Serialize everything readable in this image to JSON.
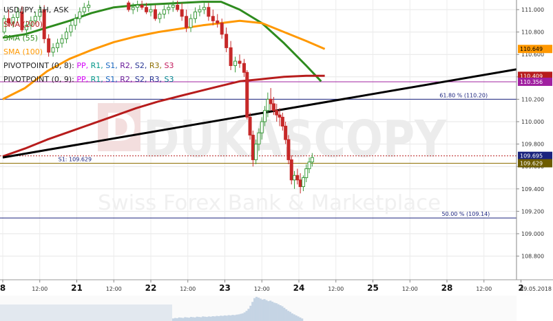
{
  "chart_data": {
    "type": "candlestick",
    "title": "USD/JPY, 1H, ASK",
    "watermark": {
      "brand": "DUKASCOPY",
      "tagline": "Swiss Forex Bank & Marketplace"
    },
    "legend": [
      {
        "text": "SMA (200)",
        "color": "#b71c1c"
      },
      {
        "text": "SMA (55)",
        "color": "#2e8b1e"
      },
      {
        "text": "SMA (100)",
        "color": "#ff9800"
      },
      {
        "text": "PIVOTPOINT (0, 8):",
        "color": "#222222",
        "parts": [
          {
            "t": "PP,",
            "c": "#d500f9"
          },
          {
            "t": "R1,",
            "c": "#009688"
          },
          {
            "t": "S1,",
            "c": "#1565c0"
          },
          {
            "t": "R2,",
            "c": "#6a1b9a"
          },
          {
            "t": "S2,",
            "c": "#283593"
          },
          {
            "t": "R3,",
            "c": "#8d6e00"
          },
          {
            "t": "S3",
            "c": "#c2185b"
          }
        ]
      },
      {
        "text": "PIVOTPOINT (0, 9):",
        "color": "#222222",
        "parts": [
          {
            "t": "PP,",
            "c": "#d500f9"
          },
          {
            "t": "R1,",
            "c": "#009688"
          },
          {
            "t": "S1,",
            "c": "#1565c0"
          },
          {
            "t": "R2,",
            "c": "#6a1b9a"
          },
          {
            "t": "S2,",
            "c": "#283593"
          },
          {
            "t": "R3,",
            "c": "#283593"
          },
          {
            "t": "S3",
            "c": "#00838f"
          }
        ]
      }
    ],
    "y_axis": {
      "ticks": [
        "111.000",
        "110.800",
        "110.600",
        "110.400",
        "110.200",
        "110.000",
        "109.800",
        "109.600",
        "109.400",
        "109.200",
        "109.000",
        "108.800"
      ],
      "range": [
        108.65,
        111.06
      ]
    },
    "x_axis": {
      "ticks": [
        {
          "label": "8",
          "bold": true,
          "x": 0
        },
        {
          "label": "12:00",
          "bold": false,
          "x": 0.5
        },
        {
          "label": "21",
          "bold": true,
          "x": 1
        },
        {
          "label": "12:00",
          "bold": false,
          "x": 1.5
        },
        {
          "label": "22",
          "bold": true,
          "x": 2
        },
        {
          "label": "12:00",
          "bold": false,
          "x": 2.5
        },
        {
          "label": "23",
          "bold": true,
          "x": 3
        },
        {
          "label": "12:00",
          "bold": false,
          "x": 3.5
        },
        {
          "label": "24",
          "bold": true,
          "x": 4
        },
        {
          "label": "12:00",
          "bold": false,
          "x": 4.5
        },
        {
          "label": "25",
          "bold": true,
          "x": 5
        },
        {
          "label": "12:00",
          "bold": false,
          "x": 5.5
        },
        {
          "label": "28",
          "bold": true,
          "x": 6
        },
        {
          "label": "12:00",
          "bold": false,
          "x": 6.5
        },
        {
          "label": "2",
          "bold": true,
          "x": 7
        }
      ],
      "end_label": "29.05.2018"
    },
    "price_tags": [
      {
        "label": "110.649",
        "value": 110.649,
        "bg": "#ff9800",
        "fg": "#000000"
      },
      {
        "label": "110.409",
        "value": 110.409,
        "bg": "#b71c1c",
        "fg": "#ffffff"
      },
      {
        "label": "110.356",
        "value": 110.356,
        "bg": "#a020a0",
        "fg": "#ffffff"
      },
      {
        "label": "109.695",
        "value": 109.695,
        "bg": "#1a237e",
        "fg": "#ffffff"
      },
      {
        "label": "109.629",
        "value": 109.629,
        "bg": "#6d5c00",
        "fg": "#ffffff"
      }
    ],
    "horizontal_lines": [
      {
        "value": 110.356,
        "color": "#a020a0",
        "label": "",
        "label_x": 0
      },
      {
        "value": 110.2,
        "color": "#1a237e",
        "label": "61.80 % (110.20)",
        "label_x": 5.9
      },
      {
        "value": 109.695,
        "color": "#b71c1c",
        "label": "",
        "label_x": 0,
        "dashed": true
      },
      {
        "value": 109.629,
        "color": "#8d6e00",
        "label": "S1: 109.629",
        "label_x": 0.75
      },
      {
        "value": 109.14,
        "color": "#1a237e",
        "label": "50.00 % (109.14)",
        "label_x": 5.93
      }
    ],
    "trendline": {
      "color": "#000000",
      "start": {
        "x": 0,
        "y": 109.68
      },
      "end": {
        "x": 7,
        "y": 110.474
      }
    },
    "series": [
      {
        "name": "SMA (55)",
        "color": "#2e8b1e",
        "points": [
          [
            0,
            110.75
          ],
          [
            0.3,
            110.78
          ],
          [
            0.6,
            110.84
          ],
          [
            0.9,
            110.9
          ],
          [
            1.2,
            110.97
          ],
          [
            1.5,
            111.02
          ],
          [
            1.8,
            111.04
          ],
          [
            2.1,
            111.05
          ],
          [
            2.4,
            111.06
          ],
          [
            2.7,
            111.07
          ],
          [
            2.95,
            111.07
          ],
          [
            3.2,
            111.0
          ],
          [
            3.5,
            110.88
          ],
          [
            3.8,
            110.7
          ],
          [
            4.1,
            110.5
          ],
          [
            4.3,
            110.36
          ]
        ]
      },
      {
        "name": "SMA (100)",
        "color": "#ff9800",
        "points": [
          [
            0,
            110.2
          ],
          [
            0.3,
            110.3
          ],
          [
            0.6,
            110.45
          ],
          [
            0.9,
            110.56
          ],
          [
            1.2,
            110.64
          ],
          [
            1.5,
            110.71
          ],
          [
            1.8,
            110.76
          ],
          [
            2.1,
            110.8
          ],
          [
            2.4,
            110.83
          ],
          [
            2.7,
            110.86
          ],
          [
            2.95,
            110.88
          ],
          [
            3.2,
            110.9
          ],
          [
            3.5,
            110.88
          ],
          [
            3.8,
            110.8
          ],
          [
            4.1,
            110.72
          ],
          [
            4.35,
            110.649
          ]
        ]
      },
      {
        "name": "SMA (200)",
        "color": "#b71c1c",
        "points": [
          [
            0,
            109.69
          ],
          [
            0.3,
            109.76
          ],
          [
            0.6,
            109.84
          ],
          [
            0.9,
            109.91
          ],
          [
            1.2,
            109.98
          ],
          [
            1.5,
            110.05
          ],
          [
            1.8,
            110.12
          ],
          [
            2.1,
            110.18
          ],
          [
            2.4,
            110.23
          ],
          [
            2.7,
            110.28
          ],
          [
            2.95,
            110.32
          ],
          [
            3.2,
            110.36
          ],
          [
            3.5,
            110.38
          ],
          [
            3.8,
            110.4
          ],
          [
            4.1,
            110.41
          ],
          [
            4.35,
            110.409
          ]
        ]
      }
    ],
    "candles": [
      [
        0.02,
        110.8,
        110.95,
        110.78,
        110.92
      ],
      [
        0.08,
        110.92,
        111.0,
        110.85,
        110.88
      ],
      [
        0.14,
        110.88,
        110.96,
        110.84,
        110.93
      ],
      [
        0.2,
        110.93,
        111.02,
        110.88,
        110.98
      ],
      [
        0.26,
        110.98,
        111.03,
        110.8,
        110.82
      ],
      [
        0.32,
        110.82,
        110.9,
        110.76,
        110.86
      ],
      [
        0.38,
        110.86,
        110.94,
        110.82,
        110.9
      ],
      [
        0.44,
        110.9,
        110.98,
        110.87,
        110.94
      ],
      [
        0.5,
        110.94,
        111.04,
        110.9,
        111.0
      ],
      [
        0.56,
        111.0,
        111.04,
        110.7,
        110.74
      ],
      [
        0.62,
        110.74,
        110.78,
        110.58,
        110.62
      ],
      [
        0.68,
        110.62,
        110.7,
        110.58,
        110.66
      ],
      [
        0.74,
        110.66,
        110.74,
        110.62,
        110.7
      ],
      [
        0.8,
        110.7,
        110.78,
        110.66,
        110.74
      ],
      [
        0.86,
        110.74,
        110.84,
        110.7,
        110.8
      ],
      [
        0.92,
        110.8,
        110.9,
        110.76,
        110.86
      ],
      [
        0.98,
        110.86,
        110.96,
        110.82,
        110.92
      ],
      [
        1.04,
        110.92,
        111.02,
        110.88,
        110.98
      ],
      [
        1.1,
        110.98,
        111.06,
        110.94,
        111.02
      ],
      [
        1.16,
        111.02,
        111.08,
        110.98,
        111.04
      ],
      [
        1.7,
        111.06,
        111.08,
        110.98,
        111.0
      ],
      [
        1.76,
        111.0,
        111.06,
        110.96,
        111.02
      ],
      [
        1.82,
        111.02,
        111.08,
        110.98,
        111.04
      ],
      [
        1.88,
        111.04,
        111.08,
        111.0,
        111.02
      ],
      [
        1.94,
        111.02,
        111.06,
        110.96,
        110.98
      ],
      [
        2.0,
        110.98,
        111.04,
        110.94,
        111.0
      ],
      [
        2.06,
        111.0,
        111.04,
        110.9,
        110.92
      ],
      [
        2.12,
        110.92,
        110.98,
        110.88,
        110.96
      ],
      [
        2.18,
        110.96,
        111.04,
        110.92,
        111.0
      ],
      [
        2.24,
        111.0,
        111.06,
        110.96,
        111.02
      ],
      [
        2.3,
        111.02,
        111.08,
        110.98,
        111.04
      ],
      [
        2.36,
        111.04,
        111.08,
        110.98,
        111.0
      ],
      [
        2.42,
        111.0,
        111.06,
        110.9,
        110.94
      ],
      [
        2.48,
        110.94,
        111.0,
        110.8,
        110.84
      ],
      [
        2.54,
        110.84,
        110.96,
        110.8,
        110.92
      ],
      [
        2.6,
        110.92,
        111.02,
        110.88,
        110.98
      ],
      [
        2.66,
        110.98,
        111.04,
        110.94,
        111.0
      ],
      [
        2.72,
        111.0,
        111.06,
        110.96,
        111.02
      ],
      [
        2.78,
        111.02,
        111.06,
        110.9,
        110.94
      ],
      [
        2.84,
        110.94,
        111.0,
        110.86,
        110.9
      ],
      [
        2.9,
        110.9,
        110.96,
        110.84,
        110.88
      ],
      [
        2.96,
        110.88,
        110.92,
        110.74,
        110.78
      ],
      [
        3.02,
        110.78,
        110.84,
        110.62,
        110.66
      ],
      [
        3.08,
        110.66,
        110.72,
        110.46,
        110.5
      ],
      [
        3.14,
        110.5,
        110.58,
        110.44,
        110.54
      ],
      [
        3.2,
        110.54,
        110.6,
        110.48,
        110.52
      ],
      [
        3.26,
        110.52,
        110.56,
        110.4,
        110.44
      ],
      [
        3.3,
        110.44,
        110.46,
        110.02,
        110.04
      ],
      [
        3.34,
        110.04,
        110.08,
        109.84,
        109.88
      ],
      [
        3.38,
        109.88,
        109.92,
        109.6,
        109.66
      ],
      [
        3.42,
        109.66,
        109.84,
        109.62,
        109.8
      ],
      [
        3.46,
        109.8,
        109.94,
        109.74,
        109.9
      ],
      [
        3.5,
        109.9,
        110.04,
        109.84,
        110.0
      ],
      [
        3.54,
        110.0,
        110.14,
        109.96,
        110.1
      ],
      [
        3.58,
        110.1,
        110.26,
        110.04,
        110.2
      ],
      [
        3.62,
        110.2,
        110.3,
        110.1,
        110.16
      ],
      [
        3.66,
        110.16,
        110.22,
        110.06,
        110.1
      ],
      [
        3.7,
        110.1,
        110.16,
        110.0,
        110.06
      ],
      [
        3.74,
        110.06,
        110.12,
        109.96,
        110.04
      ],
      [
        3.78,
        110.04,
        110.08,
        109.92,
        109.96
      ],
      [
        3.82,
        109.96,
        110.0,
        109.8,
        109.84
      ],
      [
        3.86,
        109.84,
        109.88,
        109.62,
        109.66
      ],
      [
        3.9,
        109.66,
        109.7,
        109.44,
        109.48
      ],
      [
        3.94,
        109.48,
        109.56,
        109.4,
        109.52
      ],
      [
        3.98,
        109.52,
        109.58,
        109.44,
        109.48
      ],
      [
        4.02,
        109.48,
        109.54,
        109.36,
        109.42
      ],
      [
        4.06,
        109.42,
        109.52,
        109.38,
        109.5
      ],
      [
        4.1,
        109.5,
        109.62,
        109.46,
        109.58
      ],
      [
        4.14,
        109.58,
        109.68,
        109.54,
        109.64
      ],
      [
        4.18,
        109.64,
        109.72,
        109.6,
        109.68
      ]
    ],
    "volume_bars": [
      0.1,
      0.12,
      0.11,
      0.14,
      0.13,
      0.12,
      0.15,
      0.14,
      0.13,
      0.16,
      0.15,
      0.14,
      0.17,
      0.16,
      0.15,
      0.18,
      0.17,
      0.16,
      0.18,
      0.17,
      0.19,
      0.18,
      0.2,
      0.19,
      0.21,
      0.2,
      0.22,
      0.21,
      0.23,
      0.22,
      0.24,
      0.23,
      0.25,
      0.26,
      0.28,
      0.3,
      0.34,
      0.4,
      0.48,
      0.6,
      0.75,
      0.9,
      0.95,
      0.92,
      0.88,
      0.84,
      0.86,
      0.82,
      0.78,
      0.8,
      0.76,
      0.72,
      0.7,
      0.66,
      0.62,
      0.58,
      0.52,
      0.46,
      0.4,
      0.36,
      0.3,
      0.26,
      0.22,
      0.18,
      0.14,
      0.1
    ],
    "grid": true
  }
}
